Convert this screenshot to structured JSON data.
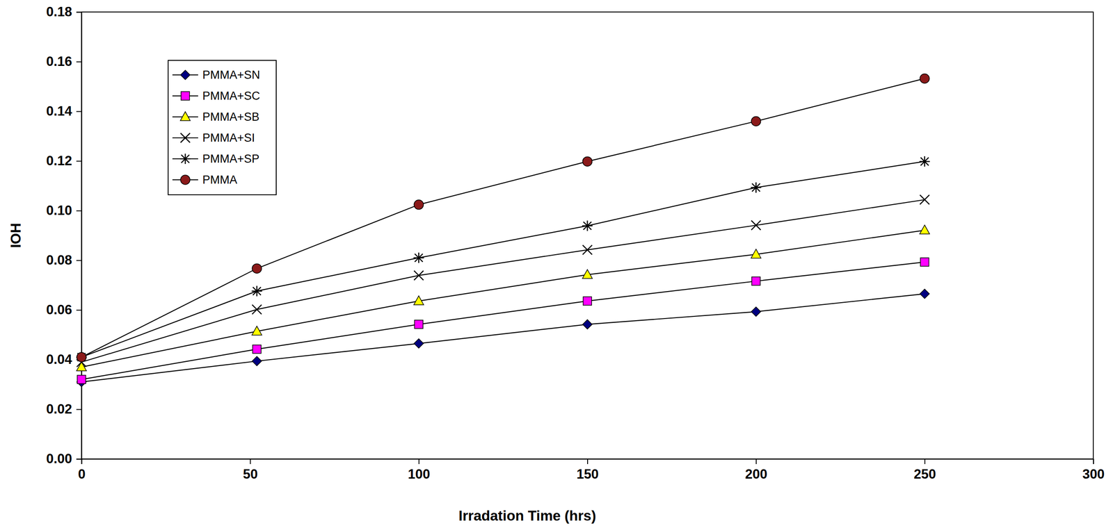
{
  "chart_data": {
    "type": "line",
    "x_label": "Irradation Time (hrs)",
    "y_label": "IOH",
    "x": [
      0,
      52,
      100,
      150,
      200,
      250
    ],
    "xlim": [
      0,
      300
    ],
    "xticks": [
      0,
      50,
      100,
      150,
      200,
      250,
      300
    ],
    "ylim": [
      0,
      0.18
    ],
    "yticks": [
      {
        "value": 0,
        "label": "0.00"
      },
      0.02,
      0.04,
      0.06,
      0.08,
      {
        "value": 0.1,
        "label": "0.10"
      },
      0.12,
      0.14,
      0.16,
      0.18
    ],
    "grid": false,
    "legend": "upper left",
    "series": [
      {
        "name": "PMMA+SN",
        "color": "#000080",
        "marker": "diamond",
        "line_style": "solid",
        "values": [
          0.031,
          0.0394,
          0.0465,
          0.0542,
          0.0593,
          0.0665
        ]
      },
      {
        "name": "PMMA+SC",
        "color": "#ff00ff",
        "marker": "square",
        "line_style": "solid",
        "values": [
          0.032,
          0.0442,
          0.0542,
          0.0636,
          0.0716,
          0.0793
        ]
      },
      {
        "name": "PMMA+SB",
        "color": "#ffff00",
        "marker": "triangle",
        "line_style": "solid",
        "values": [
          0.037,
          0.0514,
          0.0636,
          0.0742,
          0.0824,
          0.0921
        ]
      },
      {
        "name": "PMMA+SI",
        "color": "#000000",
        "marker": "x",
        "line_style": "solid",
        "values": [
          0.039,
          0.0602,
          0.0739,
          0.0842,
          0.0941,
          0.1044
        ]
      },
      {
        "name": "PMMA+SP",
        "color": "#000000",
        "marker": "asterisk",
        "line_style": "solid",
        "values": [
          0.041,
          0.0676,
          0.081,
          0.0939,
          0.1093,
          0.1198
        ]
      },
      {
        "name": "PMMA",
        "color": "#8b1a1a",
        "marker": "circle",
        "line_style": "solid",
        "values": [
          0.041,
          0.0767,
          0.1024,
          0.1198,
          0.136,
          0.1532
        ]
      }
    ]
  }
}
